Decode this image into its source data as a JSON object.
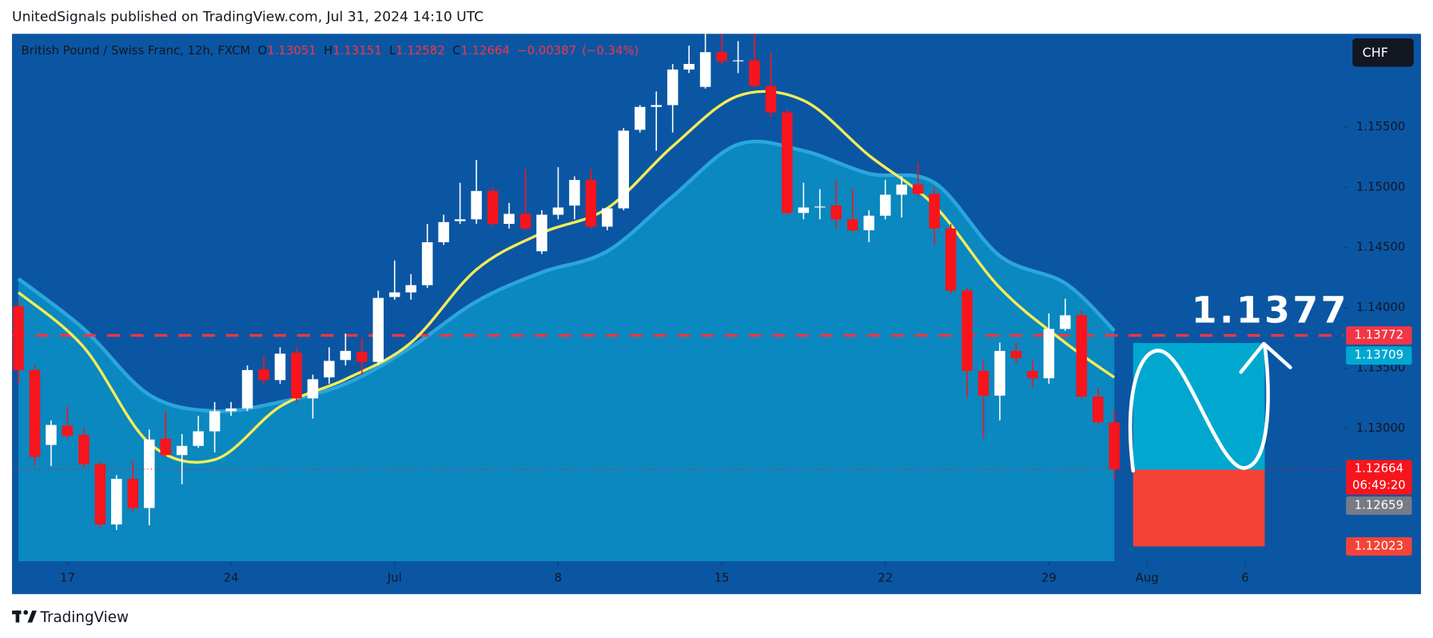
{
  "header": "UnitedSignals published on TradingView.com, Jul 31, 2024 14:10 UTC",
  "footer": "TradingView",
  "currency": "CHF",
  "chart_data": {
    "type": "candlestick",
    "legend": {
      "symbol": "British Pound / Swiss Franc, 12h, FXCM",
      "o": "O",
      "h": "H",
      "l": "L",
      "c": "C",
      "change": "−0.00387",
      "change_pct": "(−0.34%)"
    },
    "up_color": "#ffffff",
    "down_color": "#f7141c",
    "open": [
      1.14015,
      1.13485,
      1.12864,
      1.13023,
      1.12947,
      1.12705,
      1.12205,
      1.12583,
      1.12341,
      1.12917,
      1.1278,
      1.12856,
      1.12977,
      1.13144,
      1.13167,
      1.13492,
      1.13402,
      1.13629,
      1.1325,
      1.13424,
      1.13568,
      1.13636,
      1.13553,
      1.14091,
      1.14129,
      1.14189,
      1.14545,
      1.1472,
      1.14735,
      1.1497,
      1.14697,
      1.1478,
      1.1447,
      1.14773,
      1.14849,
      1.15061,
      1.14674,
      1.14826,
      1.15477,
      1.15667,
      1.15682,
      1.15977,
      1.15833,
      1.16121,
      1.16045,
      1.16053,
      1.15841,
      1.15621,
      1.14788,
      1.14833,
      1.14849,
      1.14735,
      1.14644,
      1.14765,
      1.14939,
      1.15023,
      1.14947,
      1.14659,
      1.14144,
      1.13477,
      1.13273,
      1.13644,
      1.13477,
      1.13417,
      1.13826,
      1.13939,
      1.13265,
      1.13051
    ],
    "high": [
      1.14053,
      1.13523,
      1.13068,
      1.13182,
      1.13008,
      1.12727,
      1.12614,
      1.12727,
      1.12992,
      1.13144,
      1.12955,
      1.13106,
      1.1322,
      1.1322,
      1.13523,
      1.13599,
      1.13674,
      1.13674,
      1.13447,
      1.13674,
      1.13788,
      1.1375,
      1.14144,
      1.14394,
      1.1428,
      1.14697,
      1.14773,
      1.15038,
      1.15227,
      1.15,
      1.14871,
      1.15152,
      1.14811,
      1.15167,
      1.15091,
      1.15152,
      1.14811,
      1.15492,
      1.15682,
      1.15795,
      1.16023,
      1.16174,
      1.16273,
      1.16273,
      1.16212,
      1.16273,
      1.16114,
      1.15644,
      1.15038,
      1.14985,
      1.15061,
      1.14985,
      1.14811,
      1.15061,
      1.15091,
      1.15205,
      1.15,
      1.14697,
      1.14167,
      1.13561,
      1.13712,
      1.13712,
      1.13561,
      1.13955,
      1.14076,
      1.13977,
      1.13333,
      1.13151
    ],
    "low": [
      1.13371,
      1.12689,
      1.12689,
      1.12917,
      1.12674,
      1.12174,
      1.12159,
      1.12311,
      1.12197,
      1.12765,
      1.12538,
      1.12841,
      1.12803,
      1.13106,
      1.13144,
      1.13371,
      1.13371,
      1.1322,
      1.13083,
      1.13371,
      1.13523,
      1.13447,
      1.13523,
      1.14068,
      1.14068,
      1.14167,
      1.14523,
      1.14697,
      1.14697,
      1.14674,
      1.14659,
      1.14644,
      1.14447,
      1.14735,
      1.14735,
      1.14659,
      1.14644,
      1.14811,
      1.15455,
      1.15303,
      1.15455,
      1.15947,
      1.15818,
      1.16023,
      1.15947,
      1.15826,
      1.15583,
      1.14773,
      1.14735,
      1.14735,
      1.14659,
      1.14621,
      1.14545,
      1.14735,
      1.1475,
      1.14924,
      1.14523,
      1.14114,
      1.13258,
      1.12917,
      1.13068,
      1.13538,
      1.13333,
      1.13371,
      1.13811,
      1.1325,
      1.1303,
      1.12582
    ],
    "close": [
      1.13485,
      1.12765,
      1.1303,
      1.12939,
      1.12705,
      1.12205,
      1.12583,
      1.12341,
      1.12909,
      1.1278,
      1.12856,
      1.12977,
      1.13144,
      1.13167,
      1.13485,
      1.13402,
      1.13621,
      1.1325,
      1.13409,
      1.13561,
      1.13644,
      1.13553,
      1.14083,
      1.14129,
      1.14189,
      1.14545,
      1.14712,
      1.14735,
      1.1497,
      1.14697,
      1.1478,
      1.14659,
      1.14773,
      1.14833,
      1.15061,
      1.14674,
      1.14826,
      1.1547,
      1.15667,
      1.15682,
      1.15977,
      1.16023,
      1.16121,
      1.16045,
      1.16053,
      1.15841,
      1.15621,
      1.14788,
      1.14833,
      1.14841,
      1.14735,
      1.14644,
      1.14765,
      1.14939,
      1.15023,
      1.14947,
      1.14659,
      1.14144,
      1.13477,
      1.13273,
      1.13644,
      1.13583,
      1.13417,
      1.13826,
      1.13939,
      1.13265,
      1.13053,
      1.12664
    ],
    "area": {
      "color": "#0a88bf",
      "edge_color": "#2ba6dc",
      "x": [
        0,
        4,
        8,
        12,
        16,
        20,
        24,
        28,
        32,
        36,
        40,
        44,
        48,
        52,
        56,
        60,
        64,
        67
      ],
      "values": [
        1.14242,
        1.13826,
        1.1328,
        1.13144,
        1.1322,
        1.13371,
        1.13674,
        1.14053,
        1.14295,
        1.1447,
        1.14924,
        1.15356,
        1.15303,
        1.15114,
        1.15038,
        1.14432,
        1.14205,
        1.13811
      ]
    },
    "line": {
      "color": "#f5ec57",
      "x": [
        0,
        4,
        8,
        12,
        16,
        20,
        24,
        28,
        32,
        36,
        40,
        44,
        48,
        52,
        56,
        60,
        64,
        67
      ],
      "values": [
        1.14129,
        1.13674,
        1.12879,
        1.12742,
        1.13182,
        1.13409,
        1.13712,
        1.14318,
        1.14621,
        1.14826,
        1.15341,
        1.15758,
        1.1572,
        1.15265,
        1.14849,
        1.14167,
        1.13712,
        1.13424
      ]
    },
    "level": {
      "value": 1.13772,
      "color": "#f23645"
    },
    "position": {
      "target": 1.13709,
      "entry": 1.12659,
      "stop": 1.12023,
      "target_color": "#00a8d0",
      "stop_color": "#f44336"
    },
    "countdown": "06:49:20",
    "annotation": "1.1377",
    "xlim": [
      -0.39,
      81.0
    ],
    "xticks": [
      {
        "value": 3,
        "label": "17"
      },
      {
        "value": 13,
        "label": "24"
      },
      {
        "value": 23,
        "label": "Jul"
      },
      {
        "value": 33,
        "label": "8"
      },
      {
        "value": 43,
        "label": "15"
      },
      {
        "value": 53,
        "label": "22"
      },
      {
        "value": 63,
        "label": "29"
      },
      {
        "value": 69,
        "label": "Aug"
      },
      {
        "value": 75,
        "label": "6"
      }
    ],
    "ylim": [
      1.119,
      1.16273
    ],
    "yticks": [
      {
        "value": 1.155,
        "label": "1.15500"
      },
      {
        "value": 1.15,
        "label": "1.15000"
      },
      {
        "value": 1.145,
        "label": "1.14500"
      },
      {
        "value": 1.14,
        "label": "1.14000"
      },
      {
        "value": 1.135,
        "label": "1.13500"
      },
      {
        "value": 1.13,
        "label": "1.13000"
      }
    ],
    "grid": false
  }
}
